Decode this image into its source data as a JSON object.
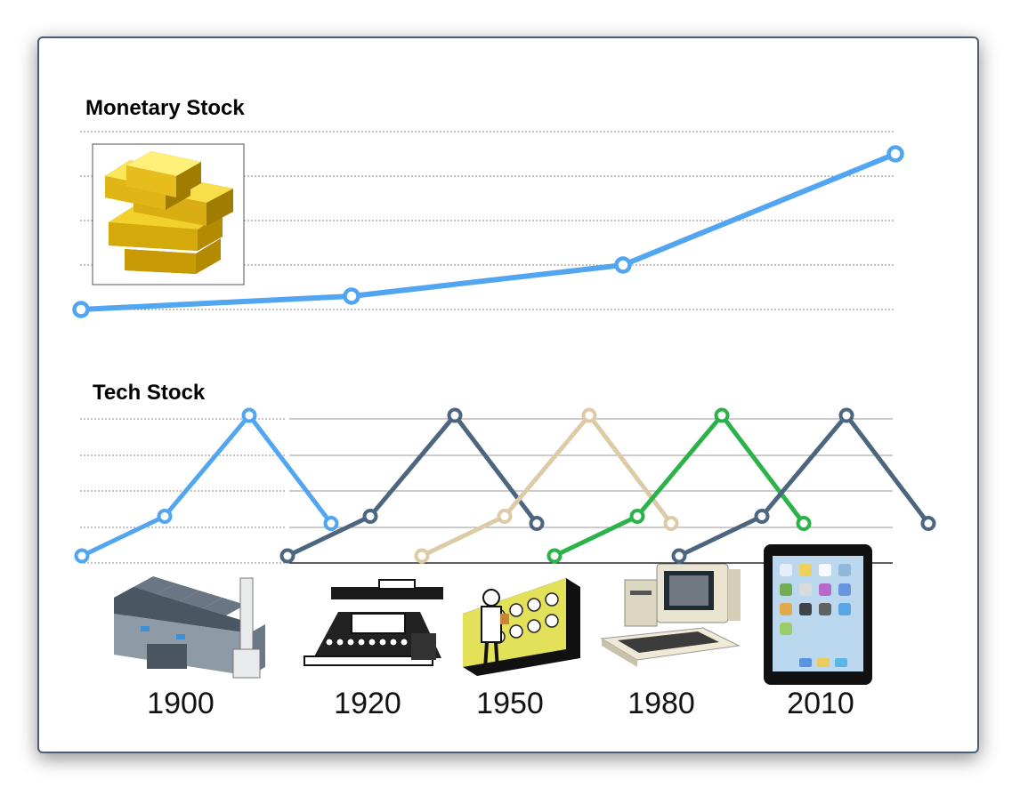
{
  "monetary": {
    "title": "Monetary Stock",
    "color": "#52a5f0",
    "points": [
      {
        "year": "1900",
        "value": 1.0
      },
      {
        "year": "1920",
        "value": 1.3
      },
      {
        "year": "1950",
        "value": 2.0
      },
      {
        "year": "2010",
        "value": 4.5
      }
    ],
    "illustration": "gold-bars-icon"
  },
  "tech": {
    "title": "Tech Stock",
    "waves": [
      {
        "era": "1900",
        "color": "#52a5f0",
        "values": [
          0,
          1.1,
          3.9,
          0.9
        ]
      },
      {
        "era": "1920",
        "color": "#4d6680",
        "values": [
          0,
          1.1,
          3.9,
          0.9
        ]
      },
      {
        "era": "1950",
        "color": "#dccba6",
        "values": [
          0,
          1.1,
          3.9,
          0.9
        ]
      },
      {
        "era": "1980",
        "color": "#2bb34a",
        "values": [
          0,
          1.1,
          3.9,
          0.9
        ]
      },
      {
        "era": "2010",
        "color": "#4d6680",
        "values": [
          0,
          1.1,
          3.9,
          0.9
        ]
      }
    ]
  },
  "eras": [
    {
      "year": "1900",
      "icon": "factory-icon"
    },
    {
      "year": "1920",
      "icon": "typewriter-icon"
    },
    {
      "year": "1950",
      "icon": "mainframe-computer-icon"
    },
    {
      "year": "1980",
      "icon": "personal-computer-icon"
    },
    {
      "year": "2010",
      "icon": "tablet-icon"
    }
  ]
}
